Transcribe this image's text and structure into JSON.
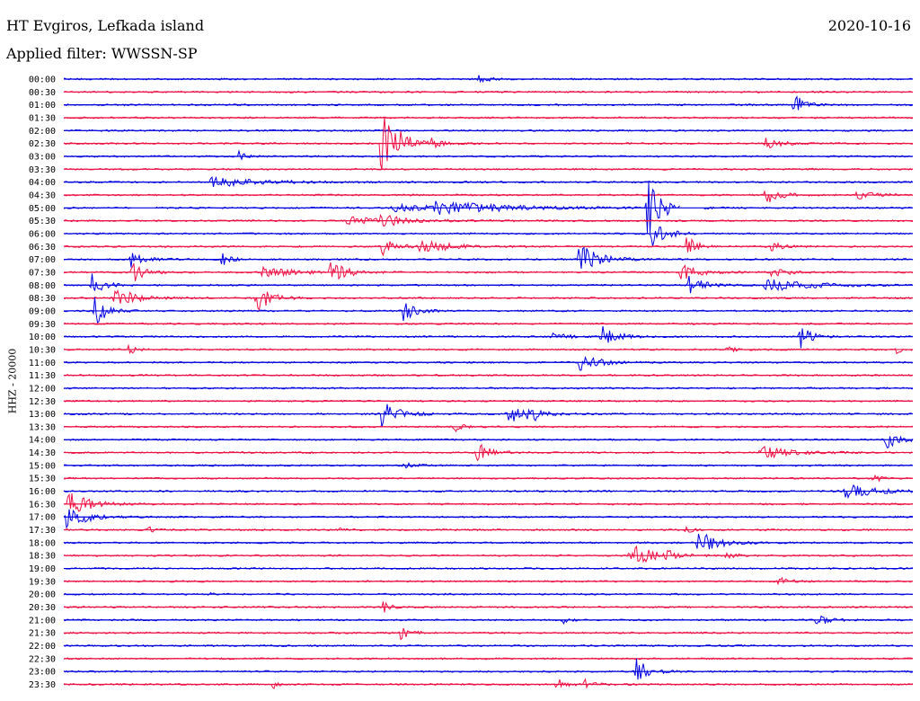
{
  "header": {
    "station": "HT Evgiros, Lefkada island",
    "filter": "Applied filter: WWSSN-SP",
    "date": "2020-10-16"
  },
  "chart_data": {
    "type": "line",
    "title": "HT Evgiros, Lefkada island",
    "subtitle": "Applied filter: WWSSN-SP",
    "ylabel": "HHZ - 20000",
    "xlabel": "",
    "colors": [
      "#0000e0",
      "#ee1144"
    ],
    "row_labels": [
      "00:00",
      "00:30",
      "01:00",
      "01:30",
      "02:00",
      "02:30",
      "03:00",
      "03:30",
      "04:00",
      "04:30",
      "05:00",
      "05:30",
      "06:00",
      "06:30",
      "07:00",
      "07:30",
      "08:00",
      "08:30",
      "09:00",
      "09:30",
      "10:00",
      "10:30",
      "11:00",
      "11:30",
      "12:00",
      "12:30",
      "13:00",
      "13:30",
      "14:00",
      "14:30",
      "15:00",
      "15:30",
      "16:00",
      "16:30",
      "17:00",
      "17:30",
      "18:00",
      "18:30",
      "19:00",
      "19:30",
      "20:00",
      "20:30",
      "21:00",
      "21:30",
      "22:00",
      "22:30",
      "23:00",
      "23:30"
    ],
    "x_range": [
      0,
      30
    ],
    "x_unit": "minutes",
    "events": [
      {
        "row": 0,
        "t": 14.6,
        "amp": 8,
        "dur": 0.6
      },
      {
        "row": 2,
        "t": 25.8,
        "amp": 14,
        "dur": 0.8
      },
      {
        "row": 5,
        "t": 11.2,
        "amp": 48,
        "dur": 1.2
      },
      {
        "row": 5,
        "t": 13.0,
        "amp": 6,
        "dur": 0.6
      },
      {
        "row": 5,
        "t": 24.8,
        "amp": 6,
        "dur": 1.2
      },
      {
        "row": 6,
        "t": 6.2,
        "amp": 6,
        "dur": 0.4
      },
      {
        "row": 8,
        "t": 5.2,
        "amp": 5,
        "dur": 4.0
      },
      {
        "row": 9,
        "t": 24.8,
        "amp": 10,
        "dur": 1.0
      },
      {
        "row": 9,
        "t": 28.0,
        "amp": 5,
        "dur": 1.2
      },
      {
        "row": 10,
        "t": 11.6,
        "amp": 4,
        "dur": 4.0
      },
      {
        "row": 10,
        "t": 13.0,
        "amp": 7,
        "dur": 5.0
      },
      {
        "row": 10,
        "t": 20.6,
        "amp": 38,
        "dur": 1.0
      },
      {
        "row": 11,
        "t": 10.0,
        "amp": 4,
        "dur": 4.0
      },
      {
        "row": 11,
        "t": 11.2,
        "amp": 10,
        "dur": 0.8
      },
      {
        "row": 12,
        "t": 20.8,
        "amp": 14,
        "dur": 1.0
      },
      {
        "row": 13,
        "t": 11.2,
        "amp": 12,
        "dur": 1.0
      },
      {
        "row": 13,
        "t": 12.6,
        "amp": 8,
        "dur": 2.0
      },
      {
        "row": 13,
        "t": 22.0,
        "amp": 12,
        "dur": 0.8
      },
      {
        "row": 13,
        "t": 25.0,
        "amp": 6,
        "dur": 0.8
      },
      {
        "row": 14,
        "t": 2.3,
        "amp": 10,
        "dur": 1.0
      },
      {
        "row": 14,
        "t": 5.6,
        "amp": 10,
        "dur": 0.5
      },
      {
        "row": 14,
        "t": 18.2,
        "amp": 18,
        "dur": 1.4
      },
      {
        "row": 15,
        "t": 2.4,
        "amp": 14,
        "dur": 0.8
      },
      {
        "row": 15,
        "t": 7.0,
        "amp": 8,
        "dur": 2.0
      },
      {
        "row": 15,
        "t": 9.4,
        "amp": 16,
        "dur": 1.0
      },
      {
        "row": 15,
        "t": 21.8,
        "amp": 10,
        "dur": 1.2
      },
      {
        "row": 15,
        "t": 25.0,
        "amp": 6,
        "dur": 1.0
      },
      {
        "row": 16,
        "t": 1.0,
        "amp": 14,
        "dur": 0.8
      },
      {
        "row": 16,
        "t": 22.0,
        "amp": 14,
        "dur": 1.0
      },
      {
        "row": 16,
        "t": 24.8,
        "amp": 8,
        "dur": 3.0
      },
      {
        "row": 17,
        "t": 1.8,
        "amp": 16,
        "dur": 1.2
      },
      {
        "row": 17,
        "t": 6.8,
        "amp": 16,
        "dur": 1.0
      },
      {
        "row": 18,
        "t": 1.1,
        "amp": 18,
        "dur": 0.8
      },
      {
        "row": 18,
        "t": 12.0,
        "amp": 14,
        "dur": 0.8
      },
      {
        "row": 20,
        "t": 17.2,
        "amp": 8,
        "dur": 0.8
      },
      {
        "row": 20,
        "t": 19.0,
        "amp": 14,
        "dur": 1.0
      },
      {
        "row": 20,
        "t": 26.0,
        "amp": 14,
        "dur": 0.8
      },
      {
        "row": 21,
        "t": 2.3,
        "amp": 6,
        "dur": 0.5
      },
      {
        "row": 21,
        "t": 23.4,
        "amp": 4,
        "dur": 0.6
      },
      {
        "row": 21,
        "t": 29.4,
        "amp": 5,
        "dur": 0.4
      },
      {
        "row": 22,
        "t": 18.2,
        "amp": 12,
        "dur": 1.2
      },
      {
        "row": 26,
        "t": 11.2,
        "amp": 16,
        "dur": 1.2
      },
      {
        "row": 26,
        "t": 15.6,
        "amp": 14,
        "dur": 1.2
      },
      {
        "row": 26,
        "t": 16.4,
        "amp": 12,
        "dur": 0.8
      },
      {
        "row": 27,
        "t": 13.8,
        "amp": 6,
        "dur": 0.6
      },
      {
        "row": 28,
        "t": 29.0,
        "amp": 10,
        "dur": 1.2
      },
      {
        "row": 29,
        "t": 14.6,
        "amp": 18,
        "dur": 0.8
      },
      {
        "row": 29,
        "t": 24.6,
        "amp": 8,
        "dur": 2.0
      },
      {
        "row": 30,
        "t": 12.0,
        "amp": 4,
        "dur": 0.8
      },
      {
        "row": 31,
        "t": 28.6,
        "amp": 8,
        "dur": 0.4
      },
      {
        "row": 32,
        "t": 27.6,
        "amp": 8,
        "dur": 2.2
      },
      {
        "row": 33,
        "t": 0.1,
        "amp": 16,
        "dur": 1.4
      },
      {
        "row": 34,
        "t": 0.1,
        "amp": 14,
        "dur": 1.4
      },
      {
        "row": 35,
        "t": 3.0,
        "amp": 4,
        "dur": 0.4
      },
      {
        "row": 35,
        "t": 9.8,
        "amp": 4,
        "dur": 0.4
      },
      {
        "row": 35,
        "t": 22.0,
        "amp": 5,
        "dur": 0.4
      },
      {
        "row": 36,
        "t": 22.4,
        "amp": 14,
        "dur": 1.4
      },
      {
        "row": 37,
        "t": 20.0,
        "amp": 14,
        "dur": 1.6
      },
      {
        "row": 37,
        "t": 21.2,
        "amp": 8,
        "dur": 0.8
      },
      {
        "row": 37,
        "t": 23.4,
        "amp": 6,
        "dur": 0.6
      },
      {
        "row": 39,
        "t": 25.2,
        "amp": 5,
        "dur": 0.8
      },
      {
        "row": 40,
        "t": 5.0,
        "amp": 3,
        "dur": 0.4
      },
      {
        "row": 41,
        "t": 11.3,
        "amp": 7,
        "dur": 0.5
      },
      {
        "row": 42,
        "t": 17.6,
        "amp": 5,
        "dur": 0.4
      },
      {
        "row": 42,
        "t": 26.6,
        "amp": 10,
        "dur": 0.8
      },
      {
        "row": 43,
        "t": 11.9,
        "amp": 8,
        "dur": 0.8
      },
      {
        "row": 46,
        "t": 20.2,
        "amp": 20,
        "dur": 0.8
      },
      {
        "row": 47,
        "t": 17.4,
        "amp": 7,
        "dur": 0.8
      },
      {
        "row": 47,
        "t": 18.4,
        "amp": 5,
        "dur": 0.6
      },
      {
        "row": 47,
        "t": 7.4,
        "amp": 5,
        "dur": 0.3
      }
    ],
    "gaps": [
      {
        "row": 10,
        "start": 2.4,
        "end": 3.2
      },
      {
        "row": 10,
        "start": 21.8,
        "end": 22.6
      }
    ],
    "grid": false,
    "legend": "none"
  }
}
